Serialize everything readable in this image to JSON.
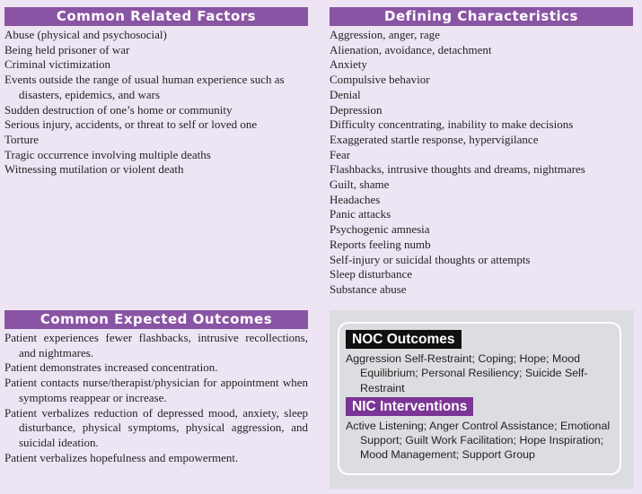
{
  "related_factors": {
    "title": "Common Related Factors",
    "items": [
      "Abuse (physical and psychosocial)",
      "Being held prisoner of war",
      "Criminal victimization",
      "Events outside the range of usual human experience such as disasters, epidemics, and wars",
      "Sudden destruction of one’s home or community",
      "Serious injury, accidents, or threat to self or loved one",
      "Torture",
      "Tragic occurrence involving multiple deaths",
      "Witnessing mutilation or violent death"
    ]
  },
  "defining_characteristics": {
    "title": "Defining Characteristics",
    "items": [
      "Aggression, anger, rage",
      "Alienation, avoidance, detachment",
      "Anxiety",
      "Compulsive behavior",
      "Denial",
      "Depression",
      "Difficulty concentrating, inability to make decisions",
      "Exaggerated startle response, hypervigilance",
      "Fear",
      "Flashbacks, intrusive thoughts and dreams, nightmares",
      "Guilt, shame",
      "Headaches",
      "Panic attacks",
      "Psychogenic amnesia",
      "Reports feeling numb",
      "Self-injury or suicidal thoughts or attempts",
      "Sleep disturbance",
      "Substance abuse"
    ]
  },
  "expected_outcomes": {
    "title": "Common Expected Outcomes",
    "items": [
      "Patient experiences fewer flashbacks, intrusive recollections, and nightmares.",
      "Patient demonstrates increased concentration.",
      "Patient contacts nurse/therapist/physician for appointment when symptoms reappear or increase.",
      "Patient verbalizes reduction of depressed mood, anxiety, sleep disturbance, physical symptoms, physical aggression, and suicidal ideation.",
      "Patient verbalizes hopefulness and empowerment."
    ]
  },
  "noc": {
    "title": "NOC Outcomes",
    "text": "Aggression Self-Restraint; Coping; Hope; Mood Equilibrium; Personal Resiliency; Suicide Self-Restraint"
  },
  "nic": {
    "title": "NIC Interventions",
    "text": "Active Listening; Anger Control Assistance; Emotional Support; Guilt Work Facilitation; Hope Inspiration; Mood Management; Support Group"
  }
}
